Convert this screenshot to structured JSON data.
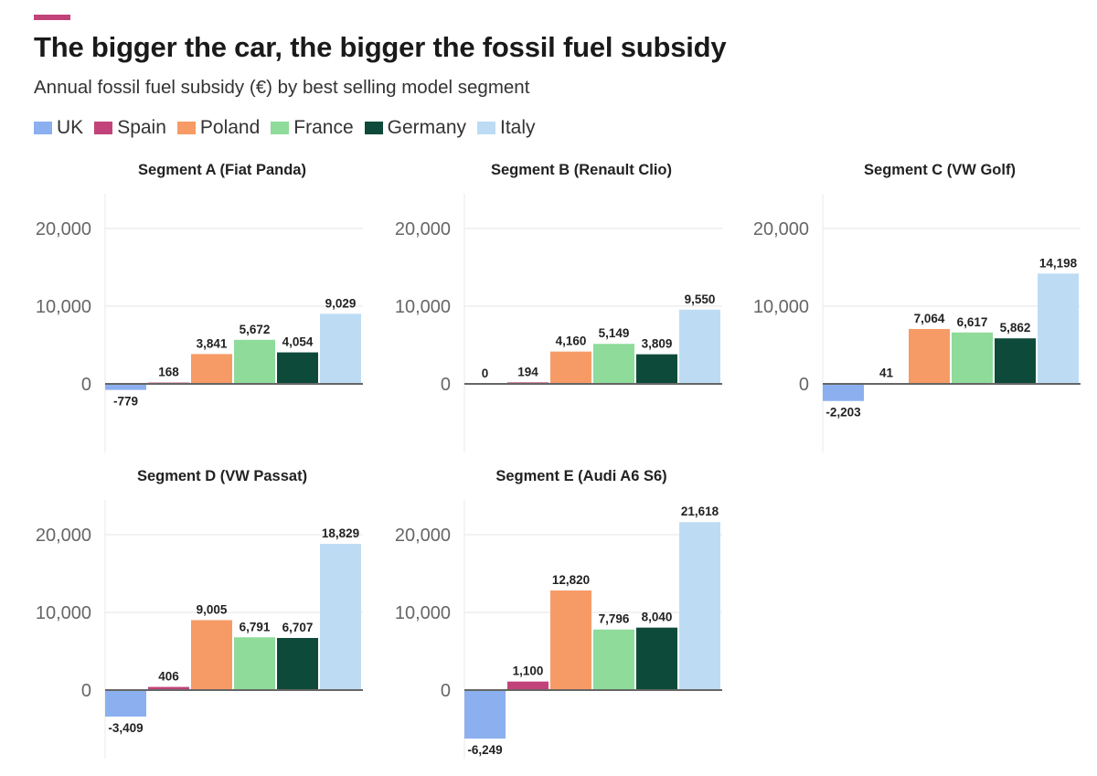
{
  "header": {
    "accent_color": "#c1437a",
    "title": "The bigger the car, the bigger the fossil fuel subsidy",
    "subtitle": "Annual fossil fuel subsidy (€) by best selling model segment"
  },
  "legend": [
    {
      "label": "UK",
      "color": "#8cb0ef"
    },
    {
      "label": "Spain",
      "color": "#c1437a"
    },
    {
      "label": "Poland",
      "color": "#f79b66"
    },
    {
      "label": "France",
      "color": "#8edb9a"
    },
    {
      "label": "Germany",
      "color": "#0e4a3a"
    },
    {
      "label": "Italy",
      "color": "#bddcf4"
    }
  ],
  "chart_data": [
    {
      "type": "bar",
      "title": "Segment A (Fiat Panda)",
      "categories": [
        "UK",
        "Spain",
        "Poland",
        "France",
        "Germany",
        "Italy"
      ],
      "values": [
        -779,
        168,
        3841,
        5672,
        4054,
        9029
      ],
      "value_labels": [
        "-779",
        "168",
        "3,841",
        "5,672",
        "4,054",
        "9,029"
      ],
      "y_ticks": [
        0,
        10000,
        20000
      ],
      "y_tick_labels": [
        "0",
        "10,000",
        "20,000"
      ],
      "ylim": [
        -8500,
        24500
      ]
    },
    {
      "type": "bar",
      "title": "Segment B (Renault Clio)",
      "categories": [
        "UK",
        "Spain",
        "Poland",
        "France",
        "Germany",
        "Italy"
      ],
      "values": [
        0,
        194,
        4160,
        5149,
        3809,
        9550
      ],
      "value_labels": [
        "0",
        "194",
        "4,160",
        "5,149",
        "3,809",
        "9,550"
      ],
      "y_ticks": [
        0,
        10000,
        20000
      ],
      "y_tick_labels": [
        "0",
        "10,000",
        "20,000"
      ],
      "ylim": [
        -8500,
        24500
      ]
    },
    {
      "type": "bar",
      "title": "Segment C (VW Golf)",
      "categories": [
        "UK",
        "Spain",
        "Poland",
        "France",
        "Germany",
        "Italy"
      ],
      "values": [
        -2203,
        41,
        7064,
        6617,
        5862,
        14198
      ],
      "value_labels": [
        "-2,203",
        "41",
        "7,064",
        "6,617",
        "5,862",
        "14,198"
      ],
      "y_ticks": [
        0,
        10000,
        20000
      ],
      "y_tick_labels": [
        "0",
        "10,000",
        "20,000"
      ],
      "ylim": [
        -8500,
        24500
      ]
    },
    {
      "type": "bar",
      "title": "Segment D (VW Passat)",
      "categories": [
        "UK",
        "Spain",
        "Poland",
        "France",
        "Germany",
        "Italy"
      ],
      "values": [
        -3409,
        406,
        9005,
        6791,
        6707,
        18829
      ],
      "value_labels": [
        "-3,409",
        "406",
        "9,005",
        "6,791",
        "6,707",
        "18,829"
      ],
      "y_ticks": [
        0,
        10000,
        20000
      ],
      "y_tick_labels": [
        "0",
        "10,000",
        "20,000"
      ],
      "ylim": [
        -8500,
        24500
      ]
    },
    {
      "type": "bar",
      "title": "Segment E (Audi A6 S6)",
      "categories": [
        "UK",
        "Spain",
        "Poland",
        "France",
        "Germany",
        "Italy"
      ],
      "values": [
        -6249,
        1100,
        12820,
        7796,
        8040,
        21618
      ],
      "value_labels": [
        "-6,249",
        "1,100",
        "12,820",
        "7,796",
        "8,040",
        "21,618"
      ],
      "y_ticks": [
        0,
        10000,
        20000
      ],
      "y_tick_labels": [
        "0",
        "10,000",
        "20,000"
      ],
      "ylim": [
        -8500,
        24500
      ]
    }
  ]
}
